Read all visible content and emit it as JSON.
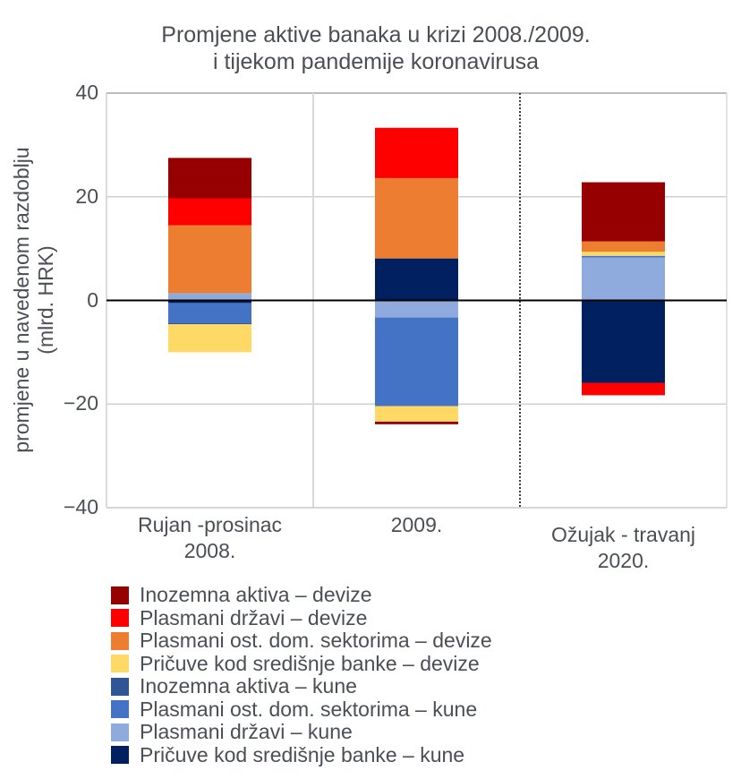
{
  "chart_data": {
    "type": "bar",
    "stacked": true,
    "title": [
      "Promjene aktive banaka u krizi 2008./2009.",
      "i tijekom pandemije koronavirusa"
    ],
    "xlabel": "",
    "ylabel": [
      "promjene u navedenom razdoblju",
      "(mlrd. HRK)"
    ],
    "ylim": [
      -40,
      40
    ],
    "yticks": [
      40,
      20,
      0,
      -20,
      -40
    ],
    "ytick_labels": [
      "40",
      "20",
      "0",
      "−20",
      "−40"
    ],
    "grid": true,
    "legend_position": "bottom",
    "categories": [
      [
        "Rujan -prosinac",
        "2008."
      ],
      [
        "2009."
      ],
      [
        "Ožujak - travanj",
        "2020."
      ]
    ],
    "separator_after_category": 1,
    "series": [
      {
        "name": "Inozemna aktiva – devize",
        "color": "#960000",
        "values": [
          7.8,
          -0.5,
          11.4
        ]
      },
      {
        "name": "Plasmani državi – devize",
        "color": "#FF0000",
        "values": [
          5.2,
          9.7,
          -2.4
        ]
      },
      {
        "name": "Plasmani ost. dom. sektorima – devize",
        "color": "#ED7D31",
        "values": [
          13.1,
          15.5,
          2.0
        ]
      },
      {
        "name": "Pričuve kod središnje banke – devize",
        "color": "#FFD966",
        "values": [
          -5.4,
          -3.0,
          0.8
        ]
      },
      {
        "name": "Inozemna aktiva – kune",
        "color": "#2F5597",
        "values": [
          -0.2,
          0.0,
          0.0
        ]
      },
      {
        "name": "Plasmani ost. dom. sektorima – kune",
        "color": "#4472C4",
        "values": [
          -3.9,
          -17.1,
          0.3
        ]
      },
      {
        "name": "Plasmani državi – kune",
        "color": "#8FAADC",
        "values": [
          1.4,
          -3.3,
          8.3
        ]
      },
      {
        "name": "Pričuve kod središnje banke – kune",
        "color": "#002060",
        "values": [
          -0.5,
          8.1,
          -15.9
        ]
      }
    ],
    "stack_order_positive": [
      6,
      7,
      5,
      4,
      3,
      2,
      1,
      0
    ],
    "stack_order_negative": [
      7,
      6,
      5,
      4,
      3,
      1,
      0
    ]
  }
}
